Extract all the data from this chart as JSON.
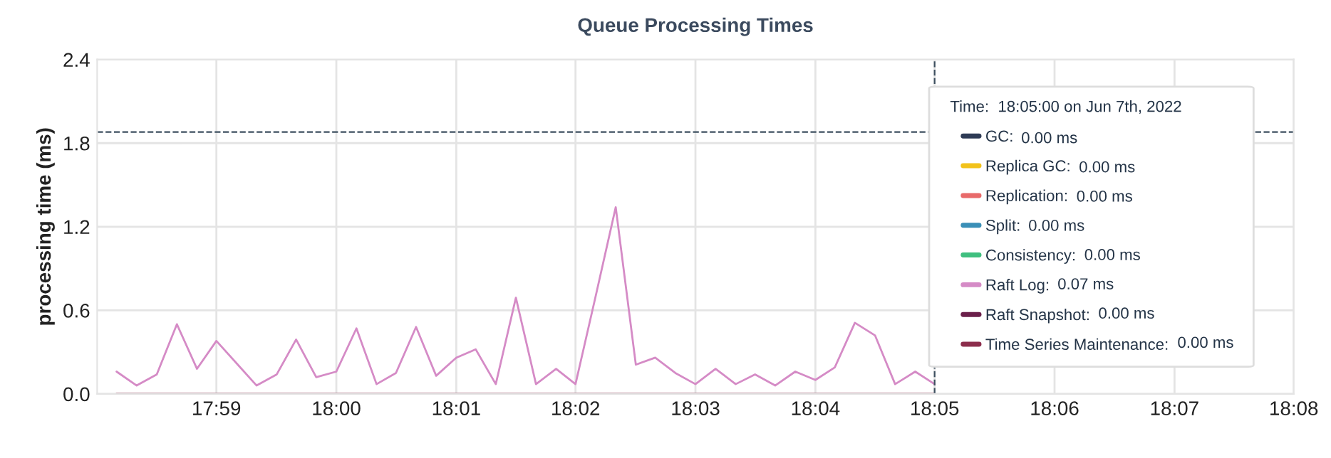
{
  "chart_data": {
    "type": "line",
    "title": "Queue Processing Times",
    "ylabel": "processing time (ms)",
    "legend_title": "Time:  18:05:00 on Jun 7th, 2022",
    "annotations": [
      "0.00 ms",
      "0.00 ms",
      "0.00 ms",
      "0.00 ms",
      "0.00 ms",
      "0.07 ms",
      "0.00 ms",
      "0.00 ms"
    ],
    "x": [
      17.9694,
      17.9722,
      17.975,
      17.9778,
      17.9806,
      17.9833,
      17.9861,
      17.9889,
      17.9917,
      17.9944,
      17.9972,
      18.0,
      18.0028,
      18.0056,
      18.0083,
      18.0111,
      18.0139,
      18.0167,
      18.0194,
      18.0222,
      18.025,
      18.0278,
      18.0306,
      18.0333,
      18.0361,
      18.0389,
      18.0417,
      18.0444,
      18.0472,
      18.05,
      18.0528,
      18.0556,
      18.0583,
      18.0611,
      18.0639,
      18.0667,
      18.0694,
      18.0722,
      18.075,
      18.0778,
      18.0806,
      18.0833
    ],
    "series": [
      {
        "name": "GC:",
        "color": "#2e3b55",
        "values": [
          null,
          null,
          null,
          null,
          null,
          null,
          null,
          null,
          null,
          null,
          null,
          null,
          null,
          null,
          null,
          null,
          null,
          null,
          null,
          null,
          null,
          null,
          null,
          null,
          null,
          null,
          null,
          null,
          null,
          null,
          null,
          null,
          null,
          null,
          null,
          null,
          null,
          null,
          null,
          null,
          null,
          null
        ]
      },
      {
        "name": "Replica GC:",
        "color": "#f2c21b",
        "values": [
          null,
          null,
          null,
          null,
          null,
          null,
          null,
          null,
          null,
          null,
          null,
          null,
          null,
          null,
          null,
          null,
          null,
          null,
          null,
          null,
          null,
          null,
          null,
          null,
          null,
          null,
          null,
          null,
          null,
          null,
          null,
          null,
          null,
          null,
          null,
          null,
          null,
          null,
          null,
          null,
          null,
          null
        ]
      },
      {
        "name": "Replication:",
        "color": "#e86a6a",
        "values": [
          null,
          null,
          null,
          null,
          null,
          null,
          null,
          null,
          null,
          null,
          null,
          null,
          null,
          null,
          null,
          null,
          null,
          null,
          null,
          null,
          null,
          null,
          null,
          null,
          null,
          null,
          null,
          null,
          null,
          null,
          null,
          null,
          null,
          null,
          null,
          null,
          null,
          null,
          null,
          null,
          null,
          null
        ]
      },
      {
        "name": "Split:",
        "color": "#3a8fb7",
        "values": [
          null,
          null,
          null,
          null,
          null,
          null,
          null,
          null,
          null,
          null,
          null,
          null,
          null,
          null,
          null,
          null,
          null,
          null,
          null,
          null,
          null,
          null,
          null,
          null,
          null,
          null,
          null,
          null,
          null,
          null,
          null,
          null,
          null,
          null,
          null,
          null,
          null,
          null,
          null,
          null,
          null,
          null
        ]
      },
      {
        "name": "Consistency:",
        "color": "#3fbf7f",
        "values": [
          null,
          null,
          null,
          null,
          null,
          null,
          null,
          null,
          null,
          null,
          null,
          null,
          null,
          null,
          null,
          null,
          null,
          null,
          null,
          null,
          null,
          null,
          null,
          null,
          null,
          null,
          null,
          null,
          null,
          null,
          null,
          null,
          null,
          null,
          null,
          null,
          null,
          null,
          null,
          null,
          null,
          null
        ]
      },
      {
        "name": "Raft Log:",
        "color": "#d58bc6",
        "values": [
          0.16,
          0.06,
          0.14,
          0.5,
          0.18,
          0.38,
          0.22,
          0.06,
          0.14,
          0.39,
          0.12,
          0.16,
          0.47,
          0.07,
          0.15,
          0.48,
          0.13,
          0.26,
          0.32,
          0.07,
          0.69,
          0.07,
          0.18,
          0.07,
          0.7,
          1.34,
          0.21,
          0.26,
          0.15,
          0.07,
          0.18,
          0.07,
          0.14,
          0.06,
          0.16,
          0.1,
          0.19,
          0.51,
          0.42,
          0.07,
          0.16,
          0.07
        ]
      },
      {
        "name": "Raft Snapshot:",
        "color": "#6b1f4a",
        "values": [
          null,
          null,
          null,
          null,
          null,
          null,
          null,
          null,
          null,
          null,
          null,
          null,
          null,
          null,
          null,
          null,
          null,
          null,
          null,
          null,
          null,
          null,
          null,
          null,
          null,
          null,
          null,
          null,
          null,
          null,
          null,
          null,
          null,
          null,
          null,
          null,
          null,
          null,
          null,
          null,
          null,
          null
        ]
      },
      {
        "name": "Time Series Maintenance:",
        "color": "#8c2d4c",
        "values": [
          0,
          0,
          0,
          0,
          0,
          0,
          0,
          0,
          0,
          0,
          0,
          0,
          0,
          0,
          0,
          0,
          0,
          0,
          0,
          0,
          0,
          0,
          0,
          0,
          0,
          0,
          0,
          0,
          0,
          0,
          0,
          0,
          0,
          0,
          0,
          0,
          0,
          0,
          0,
          0,
          0,
          0
        ]
      }
    ],
    "xlim": [
      17.9667,
      18.1333
    ],
    "xticks": [
      {
        "value": 17.9833,
        "label": "17:59"
      },
      {
        "value": 18.0,
        "label": "18:00"
      },
      {
        "value": 18.0167,
        "label": "18:01"
      },
      {
        "value": 18.0333,
        "label": "18:02"
      },
      {
        "value": 18.05,
        "label": "18:03"
      },
      {
        "value": 18.0667,
        "label": "18:04"
      },
      {
        "value": 18.0833,
        "label": "18:05"
      },
      {
        "value": 18.1,
        "label": "18:06"
      },
      {
        "value": 18.1167,
        "label": "18:07"
      },
      {
        "value": 18.1333,
        "label": "18:08"
      }
    ],
    "ylim": [
      0,
      2.4
    ],
    "yticks": [
      {
        "value": 0,
        "label": "0.0"
      },
      0.6,
      1.2,
      1.8,
      2.4
    ],
    "ref_lines": [
      {
        "axis": "y",
        "value": 1.88,
        "color": "#3e5060",
        "line_style": "dashed"
      },
      {
        "axis": "x",
        "value": 18.0833,
        "color": "#3e5060",
        "line_style": "dashed"
      }
    ],
    "grid": true,
    "legend": "right",
    "marker": "none",
    "line_style": "solid"
  }
}
